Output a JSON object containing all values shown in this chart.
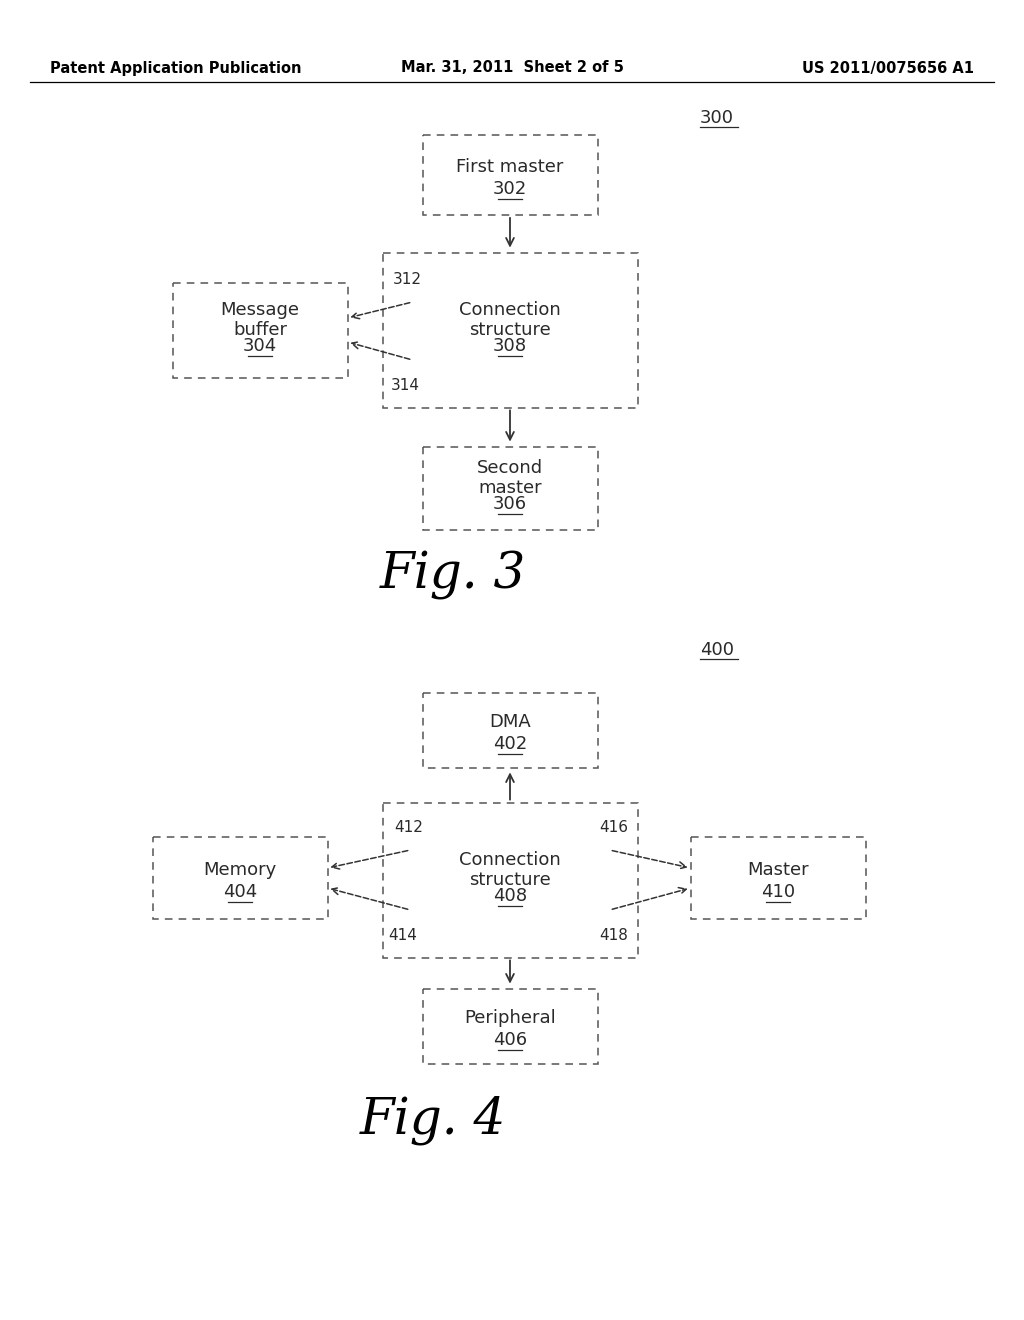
{
  "background_color": "#ffffff",
  "header_left": "Patent Application Publication",
  "header_center": "Mar. 31, 2011  Sheet 2 of 5",
  "header_right": "US 2011/0075656 A1",
  "header_fontsize": 10.5,
  "fig3_label": "300",
  "fig3_caption": "Fig. 3",
  "fig4_label": "400",
  "fig4_caption": "Fig. 4",
  "text_color": "#2a2a2a",
  "box_edge_color": "#555555",
  "line_color": "#333333"
}
